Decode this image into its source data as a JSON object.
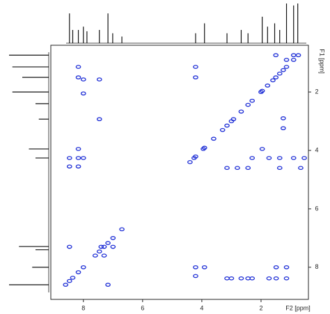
{
  "chart_data": {
    "type": "contour",
    "x_label": "F2 [ppm]",
    "y_label": "F1 [ppm]",
    "xlim": [
      9.1,
      0.4
    ],
    "ylim": [
      0.4,
      9.1
    ],
    "xticks": [
      8,
      6,
      4,
      2
    ],
    "yticks": [
      2,
      4,
      6,
      8
    ],
    "color": "#1f2fd6",
    "peaks": {
      "x": [
        0.74,
        0.9,
        1.14,
        1.25,
        1.37,
        1.5,
        1.6,
        1.78,
        1.96,
        2.0,
        2.3,
        2.44,
        2.67,
        2.93,
        3.0,
        3.15,
        3.3,
        3.6,
        3.91,
        3.95,
        4.21,
        4.26,
        4.4,
        6.7,
        7.0,
        7.17,
        7.3,
        7.46,
        7.6,
        8.0,
        8.17,
        8.36,
        8.47,
        8.6,
        8.17,
        8.17,
        8.17,
        8.17,
        8.17,
        8.0,
        8.0,
        8.0,
        7.46,
        7.46,
        8.47,
        8.47,
        8.47,
        4.21,
        4.21,
        4.21,
        4.21,
        3.91,
        3.15,
        3.0,
        2.67,
        2.44,
        2.3,
        1.73,
        1.49,
        1.14,
        1.49,
        1.14,
        3.15,
        2.8,
        2.44,
        1.37,
        0.66,
        2.3,
        1.73,
        1.37,
        0.9,
        0.54,
        1.96,
        1.25,
        1.25,
        7.4,
        7.0,
        7.3,
        7.17,
        1.5,
        1.14,
        0.9
      ],
      "y": [
        0.74,
        0.9,
        1.14,
        1.25,
        1.37,
        1.5,
        1.6,
        1.78,
        1.96,
        2.0,
        2.3,
        2.44,
        2.67,
        2.93,
        3.0,
        3.15,
        3.3,
        3.6,
        3.91,
        3.95,
        4.21,
        4.26,
        4.4,
        6.7,
        7.0,
        7.17,
        7.3,
        7.46,
        7.6,
        8.0,
        8.17,
        8.36,
        8.47,
        8.6,
        1.14,
        1.5,
        3.95,
        4.26,
        4.55,
        1.57,
        2.05,
        4.26,
        1.57,
        2.93,
        4.26,
        4.55,
        7.3,
        1.14,
        1.5,
        8.0,
        8.3,
        8.0,
        8.38,
        8.38,
        8.38,
        8.38,
        8.38,
        8.38,
        8.38,
        8.38,
        8.0,
        8.0,
        4.6,
        4.6,
        4.6,
        4.6,
        4.6,
        4.26,
        4.26,
        4.26,
        4.26,
        4.26,
        3.95,
        2.9,
        3.24,
        7.3,
        7.3,
        7.6,
        8.6,
        0.74,
        0.9,
        0.74
      ]
    },
    "top_projection": {
      "x": [
        8.47,
        8.36,
        8.17,
        8.0,
        7.88,
        7.46,
        7.17,
        7.01,
        6.7,
        4.21,
        3.91,
        3.15,
        2.67,
        2.44,
        1.96,
        1.78,
        1.54,
        1.37,
        1.14,
        0.9,
        0.76
      ],
      "values": [
        45,
        20,
        20,
        25,
        18,
        20,
        45,
        15,
        10,
        15,
        30,
        15,
        20,
        15,
        40,
        25,
        30,
        20,
        60,
        57,
        60
      ]
    },
    "left_projection": {
      "y": [
        0.74,
        1.14,
        1.5,
        2.0,
        2.4,
        2.93,
        3.95,
        4.26,
        7.29,
        7.4,
        8.0,
        8.6
      ],
      "values": [
        60,
        55,
        40,
        55,
        20,
        15,
        30,
        20,
        45,
        20,
        25,
        60
      ]
    }
  }
}
